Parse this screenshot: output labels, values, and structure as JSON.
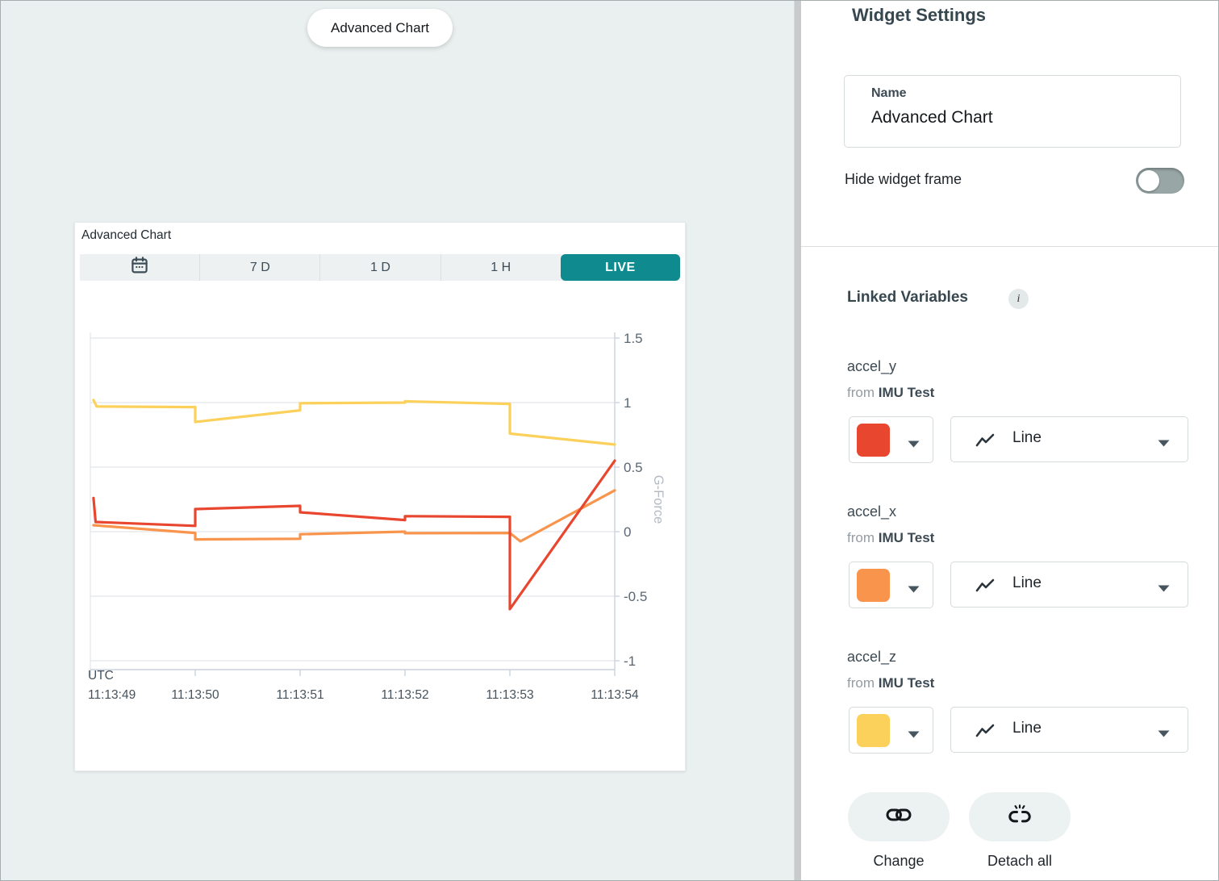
{
  "canvas": {
    "floating_label": "Advanced Chart"
  },
  "chart_widget": {
    "title": "Advanced Chart",
    "toolbar": {
      "calendar_icon": "calendar-icon",
      "ranges": [
        "7 D",
        "1 D",
        "1 H"
      ],
      "live_label": "LIVE"
    }
  },
  "chart_data": {
    "type": "line",
    "title": "Advanced Chart",
    "ylabel": "G-Force",
    "x_axis_zone_label": "UTC",
    "x_tick_seconds": [
      49,
      50,
      51,
      52,
      53,
      54
    ],
    "x_tick_labels": [
      "11:13:49",
      "11:13:50",
      "11:13:51",
      "11:13:52",
      "11:13:53",
      "11:13:54"
    ],
    "y_ticks": [
      1.5,
      1,
      0.5,
      0,
      -0.5,
      -1
    ],
    "y_tick_labels": [
      "1.5",
      "1",
      "0.5",
      "0",
      "-0.5",
      "-1"
    ],
    "ylim": [
      -1.07,
      1.56
    ],
    "grid": "horizontal",
    "legend": "none",
    "series": [
      {
        "name": "accel_z",
        "color": "#fbd15b",
        "points": [
          [
            49.03,
            1.02
          ],
          [
            49.06,
            0.97
          ],
          [
            50,
            0.965
          ],
          [
            50,
            0.85
          ],
          [
            51,
            0.94
          ],
          [
            51,
            0.995
          ],
          [
            52,
            1.0
          ],
          [
            52,
            1.01
          ],
          [
            53,
            0.99
          ],
          [
            53,
            0.76
          ],
          [
            54,
            0.675
          ]
        ]
      },
      {
        "name": "accel_x",
        "color": "#f9944d",
        "points": [
          [
            49.03,
            0.05
          ],
          [
            50,
            -0.01
          ],
          [
            50,
            -0.06
          ],
          [
            51,
            -0.055
          ],
          [
            51,
            -0.02
          ],
          [
            52,
            0.0
          ],
          [
            52,
            -0.012
          ],
          [
            53,
            -0.01
          ],
          [
            53.1,
            -0.075
          ],
          [
            54,
            0.32
          ]
        ]
      },
      {
        "name": "accel_y",
        "color": "#e8462f",
        "points": [
          [
            49.03,
            0.26
          ],
          [
            49.05,
            0.075
          ],
          [
            50,
            0.045
          ],
          [
            50,
            0.175
          ],
          [
            51,
            0.2
          ],
          [
            51,
            0.15
          ],
          [
            52,
            0.09
          ],
          [
            52,
            0.12
          ],
          [
            53,
            0.115
          ],
          [
            53,
            -0.6
          ],
          [
            54,
            0.55
          ]
        ]
      }
    ]
  },
  "settings_panel": {
    "title": "Widget Settings",
    "name_field": {
      "label": "Name",
      "value": "Advanced Chart"
    },
    "hide_widget_frame_label": "Hide widget frame",
    "hide_widget_frame_state": "off",
    "linked_variables": {
      "heading": "Linked Variables",
      "info_icon_glyph": "i",
      "items": [
        {
          "variable": "accel_y",
          "from_prefix": "from",
          "source": "IMU Test",
          "color": "#e8462f",
          "plot_type": "Line"
        },
        {
          "variable": "accel_x",
          "from_prefix": "from",
          "source": "IMU Test",
          "color": "#f9944d",
          "plot_type": "Line"
        },
        {
          "variable": "accel_z",
          "from_prefix": "from",
          "source": "IMU Test",
          "color": "#fbd15b",
          "plot_type": "Line"
        }
      ],
      "actions": [
        {
          "label": "Change",
          "icon": "link-icon"
        },
        {
          "label": "Detach all",
          "icon": "link-broken-icon"
        }
      ]
    }
  },
  "colors": {
    "accent_teal": "#0f8a8e",
    "canvas_background": "#eaf0ef",
    "panel_background": "#ffffff"
  }
}
